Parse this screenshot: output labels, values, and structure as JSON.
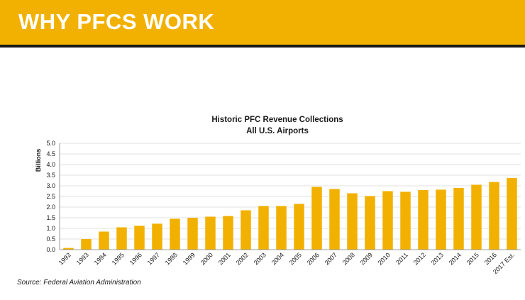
{
  "header": {
    "title": "WHY PFCS WORK"
  },
  "colors": {
    "accent": "#F2B100",
    "bar": "#F2B100",
    "rule": "#1a1a1a",
    "grid": "#d9d9d9"
  },
  "chart_data": {
    "type": "bar",
    "title": "Historic  PFC Revenue Collections",
    "subtitle": "All U.S. Airports",
    "xlabel": "",
    "ylabel": "Billions",
    "ylim": [
      0,
      5.0
    ],
    "yticks": [
      "0.0",
      "0.5",
      "1.0",
      "1.5",
      "2.0",
      "2.5",
      "3.0",
      "3.5",
      "4.0",
      "4.5",
      "5.0"
    ],
    "grid": true,
    "categories": [
      "1992",
      "1993",
      "1994",
      "1995",
      "1996",
      "1997",
      "1998",
      "1999",
      "2000",
      "2001",
      "2002",
      "2003",
      "2004",
      "2005",
      "2006",
      "2007",
      "2008",
      "2009",
      "2010",
      "2011",
      "2012",
      "2013",
      "2014",
      "2015",
      "2016",
      "2017 Est."
    ],
    "series": [
      {
        "name": "PFC Revenue Collections",
        "values": [
          0.08,
          0.5,
          0.85,
          1.05,
          1.12,
          1.22,
          1.45,
          1.5,
          1.55,
          1.58,
          1.85,
          2.05,
          2.05,
          2.15,
          2.95,
          2.85,
          2.65,
          2.52,
          2.75,
          2.72,
          2.8,
          2.82,
          2.9,
          3.05,
          3.18,
          3.37
        ]
      }
    ]
  },
  "source": "Source: Federal Aviation Administration"
}
